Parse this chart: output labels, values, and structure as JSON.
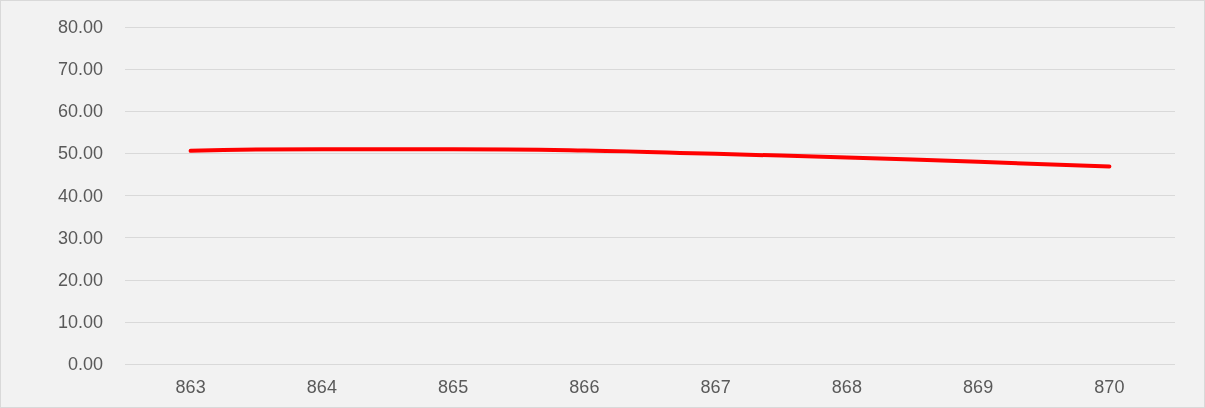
{
  "chart_data": {
    "type": "line",
    "categories": [
      "863",
      "864",
      "865",
      "866",
      "867",
      "868",
      "869",
      "870"
    ],
    "series": [
      {
        "color": "#ff0000",
        "values": [
          50.6,
          51.0,
          51.0,
          50.7,
          49.9,
          49.0,
          48.0,
          46.9
        ]
      }
    ],
    "ylim": [
      0,
      80
    ],
    "yticks": [
      {
        "value": 0,
        "label": "0.00"
      },
      {
        "value": 10,
        "label": "10.00"
      },
      {
        "value": 20,
        "label": "20.00"
      },
      {
        "value": 30,
        "label": "30.00"
      },
      {
        "value": 40,
        "label": "40.00"
      },
      {
        "value": 50,
        "label": "50.00"
      },
      {
        "value": 60,
        "label": "60.00"
      },
      {
        "value": 70,
        "label": "70.00"
      },
      {
        "value": 80,
        "label": "80.00"
      }
    ],
    "grid": "y",
    "marker": "none",
    "line_style": "solid"
  }
}
